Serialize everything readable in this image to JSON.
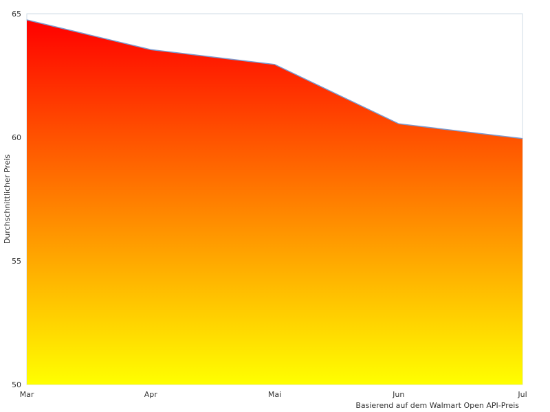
{
  "chart_data": {
    "type": "area",
    "categories": [
      "Mar",
      "Apr",
      "Mai",
      "Jun",
      "Jul"
    ],
    "series": [
      {
        "values": [
          64.75,
          63.55,
          62.95,
          60.55,
          59.95
        ]
      }
    ],
    "xlabel": "",
    "ylabel": "Durchschnittlicher Preis",
    "ylim": [
      50,
      65
    ],
    "yticks": [
      "50",
      "55",
      "60",
      "65"
    ],
    "credit": "Basierend auf dem Walmart Open API-Preis",
    "grid": false,
    "legend": "none",
    "colors": {
      "gradient_top": "#ff0000",
      "gradient_bottom": "#ffff00",
      "line": "#7b9bd0",
      "frame": "#cfdbe6"
    }
  }
}
